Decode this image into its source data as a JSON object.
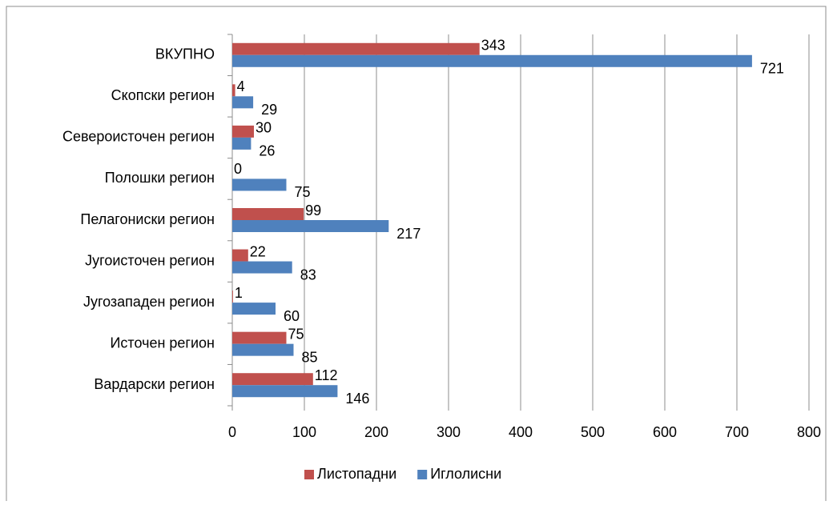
{
  "chart_data": {
    "type": "bar",
    "orientation": "horizontal",
    "categories": [
      "ВКУПНО",
      "Скопски регион",
      "Североисточен регион",
      "Полошки регион",
      "Пелагониски регион",
      "Југоисточен регион",
      "Југозападен регион",
      "Источен регион",
      "Вардарски регион"
    ],
    "series": [
      {
        "name": "Листопадни",
        "color": "#c0504d",
        "values": [
          343,
          4,
          30,
          0,
          99,
          22,
          1,
          75,
          112
        ]
      },
      {
        "name": "Иглолисни",
        "color": "#4f81bd",
        "values": [
          721,
          29,
          26,
          75,
          217,
          83,
          60,
          85,
          146
        ]
      }
    ],
    "xlim": [
      0,
      800
    ],
    "xticks": [
      0,
      100,
      200,
      300,
      400,
      500,
      600,
      700,
      800
    ],
    "grid": true,
    "legend": "bottom"
  }
}
